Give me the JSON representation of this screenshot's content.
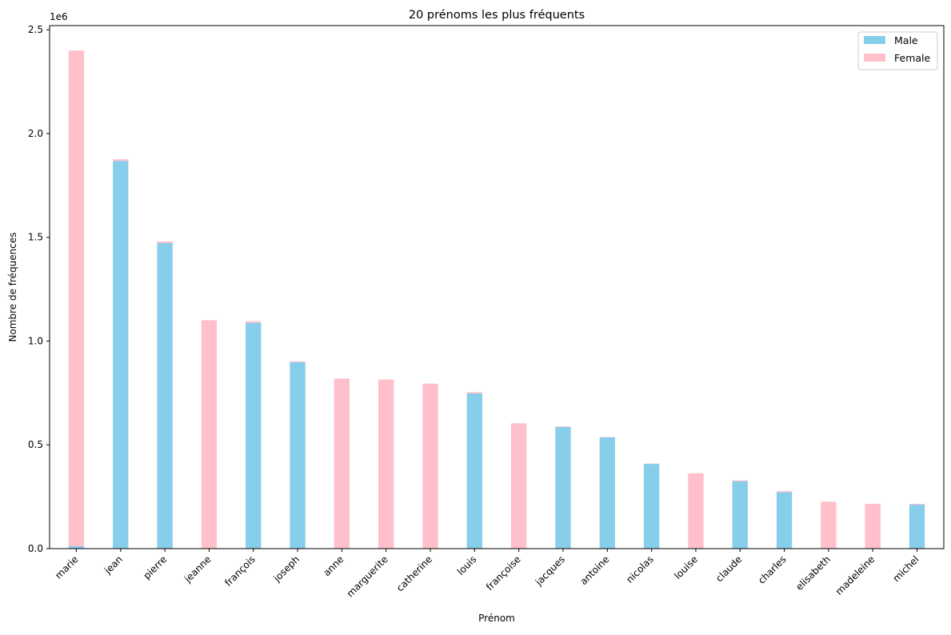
{
  "chart_data": {
    "type": "bar",
    "stacked": true,
    "title": "20 prénoms les plus fréquents",
    "xlabel": "Prénom",
    "ylabel": "Nombre de fréquences",
    "offset_text": "1e6",
    "ylim": [
      0,
      2520000
    ],
    "yticks": [
      0,
      500000,
      1000000,
      1500000,
      2000000,
      2500000
    ],
    "ytick_labels": [
      "0.0",
      "0.5",
      "1.0",
      "1.5",
      "2.0",
      "2.5"
    ],
    "grid": false,
    "legend_position": "top-right",
    "categories": [
      "marie",
      "jean",
      "pierre",
      "jeanne",
      "françois",
      "joseph",
      "anne",
      "marguerite",
      "catherine",
      "louis",
      "françoise",
      "jacques",
      "antoine",
      "nicolas",
      "louise",
      "claude",
      "charles",
      "elisabeth",
      "madeleine",
      "michel"
    ],
    "series": [
      {
        "name": "Male",
        "color": "#87CEEB",
        "values": [
          12000,
          1868000,
          1472000,
          2000,
          1088000,
          898000,
          1500,
          1000,
          1000,
          748000,
          2000,
          586000,
          536000,
          408000,
          1500,
          325000,
          272000,
          1000,
          1000,
          212000
        ]
      },
      {
        "name": "Female",
        "color": "#FFC0CB",
        "values": [
          2388000,
          8000,
          8000,
          1098000,
          8000,
          4000,
          818000,
          814000,
          794000,
          6000,
          602000,
          3000,
          2000,
          2000,
          362000,
          4000,
          5000,
          225000,
          215000,
          4000
        ]
      }
    ]
  }
}
